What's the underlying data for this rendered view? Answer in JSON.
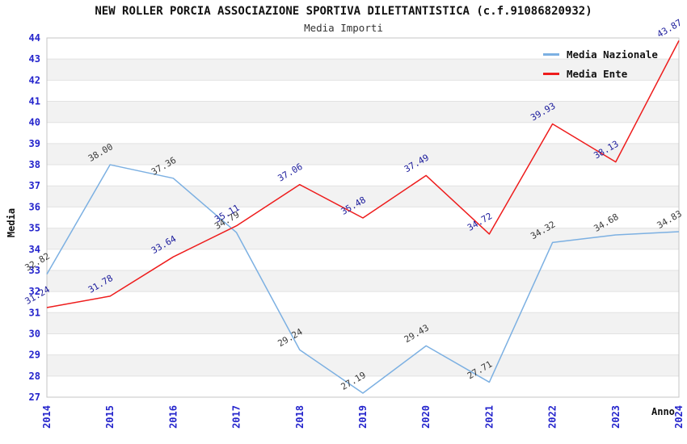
{
  "chart_data": {
    "type": "line",
    "title": "NEW ROLLER PORCIA ASSOCIAZIONE SPORTIVA DILETTANTISTICA (c.f.91086820932)",
    "subtitle": "Media Importi",
    "xlabel": "Anno",
    "ylabel": "Media",
    "categories": [
      "2014",
      "2015",
      "2016",
      "2017",
      "2018",
      "2019",
      "2020",
      "2021",
      "2022",
      "2023",
      "2024"
    ],
    "series": [
      {
        "name": "Media Nazionale",
        "color": "#7cb0e2",
        "label_color": "#3a3a3a",
        "values": [
          32.82,
          38.0,
          37.36,
          34.79,
          29.24,
          27.19,
          29.43,
          27.71,
          34.32,
          34.68,
          34.83
        ]
      },
      {
        "name": "Media Ente",
        "color": "#ee1c1c",
        "label_color": "#1c1c9c",
        "values": [
          31.24,
          31.78,
          33.64,
          35.11,
          37.06,
          35.48,
          37.49,
          34.72,
          39.93,
          38.13,
          43.87
        ]
      }
    ],
    "ylim": [
      27,
      44
    ],
    "y_step": 1,
    "grid": "horizontal-bands",
    "legend_position": "top-right",
    "colors": {
      "tick_label": "#2424cc",
      "band_gray": "#f2f2f2",
      "gridline": "#e2e2e2",
      "plot_border": "#c4c4c4",
      "title_text": "#111111"
    }
  }
}
